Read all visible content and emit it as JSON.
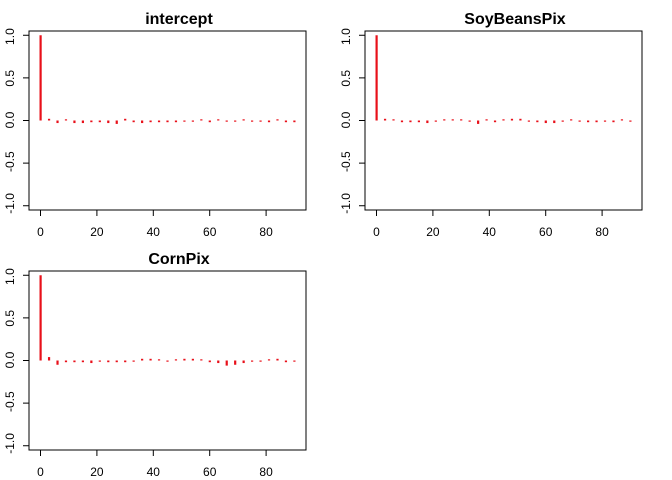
{
  "colors": {
    "bar": "#e8101a",
    "axis": "#000000",
    "background": "#ffffff"
  },
  "chart_data": [
    {
      "type": "bar",
      "title": "intercept",
      "xlim": [
        0,
        90
      ],
      "ylim": [
        -1.05,
        1.05
      ],
      "xticks": [
        0,
        20,
        40,
        60,
        80
      ],
      "xtick_labels": [
        "0",
        "20",
        "40",
        "60",
        "80"
      ],
      "yticks": [
        -1.0,
        -0.5,
        0.0,
        0.5,
        1.0
      ],
      "ytick_labels": [
        "-1.0",
        "-0.5",
        "0.0",
        "0.5",
        "1.0"
      ],
      "lags": [
        0,
        3,
        6,
        9,
        12,
        15,
        18,
        21,
        24,
        27,
        30,
        33,
        36,
        39,
        42,
        45,
        48,
        51,
        54,
        57,
        60,
        63,
        66,
        69,
        72,
        75,
        78,
        81,
        84,
        87,
        90
      ],
      "values": [
        1.0,
        0.02,
        -0.03,
        0.01,
        -0.03,
        -0.03,
        -0.02,
        -0.02,
        -0.03,
        -0.04,
        0.02,
        -0.02,
        -0.03,
        -0.02,
        -0.02,
        -0.02,
        -0.02,
        -0.01,
        -0.01,
        0.0,
        -0.02,
        0.01,
        -0.01,
        -0.01,
        0.0,
        -0.01,
        -0.01,
        -0.02,
        0.01,
        -0.02,
        -0.02
      ]
    },
    {
      "type": "bar",
      "title": "SoyBeansPix",
      "xlim": [
        0,
        90
      ],
      "ylim": [
        -1.05,
        1.05
      ],
      "xticks": [
        0,
        20,
        40,
        60,
        80
      ],
      "xtick_labels": [
        "0",
        "20",
        "40",
        "60",
        "80"
      ],
      "yticks": [
        -1.0,
        -0.5,
        0.0,
        0.5,
        1.0
      ],
      "ytick_labels": [
        "-1.0",
        "-0.5",
        "0.0",
        "0.5",
        "1.0"
      ],
      "lags": [
        0,
        3,
        6,
        9,
        12,
        15,
        18,
        21,
        24,
        27,
        30,
        33,
        36,
        39,
        42,
        45,
        48,
        51,
        54,
        57,
        60,
        63,
        66,
        69,
        72,
        75,
        78,
        81,
        84,
        87,
        90
      ],
      "values": [
        1.0,
        0.02,
        0.01,
        -0.02,
        -0.02,
        -0.02,
        -0.03,
        -0.01,
        0.0,
        0.0,
        0.01,
        -0.01,
        -0.04,
        0.01,
        -0.02,
        0.01,
        0.02,
        0.02,
        -0.01,
        -0.02,
        -0.03,
        -0.03,
        -0.01,
        0.0,
        -0.01,
        -0.02,
        -0.02,
        -0.01,
        -0.02,
        0.01,
        -0.01
      ]
    },
    {
      "type": "bar",
      "title": "CornPix",
      "xlim": [
        0,
        90
      ],
      "ylim": [
        -1.05,
        1.05
      ],
      "xticks": [
        0,
        20,
        40,
        60,
        80
      ],
      "xtick_labels": [
        "0",
        "20",
        "40",
        "60",
        "80"
      ],
      "yticks": [
        -1.0,
        -0.5,
        0.0,
        0.5,
        1.0
      ],
      "ytick_labels": [
        "-1.0",
        "-0.5",
        "0.0",
        "0.5",
        "1.0"
      ],
      "lags": [
        0,
        3,
        6,
        9,
        12,
        15,
        18,
        21,
        24,
        27,
        30,
        33,
        36,
        39,
        42,
        45,
        48,
        51,
        54,
        57,
        60,
        63,
        66,
        69,
        72,
        75,
        78,
        81,
        84,
        87,
        90
      ],
      "values": [
        1.0,
        0.04,
        -0.05,
        -0.02,
        -0.02,
        -0.02,
        -0.03,
        -0.01,
        -0.02,
        -0.02,
        -0.02,
        -0.01,
        0.02,
        0.02,
        0.01,
        -0.01,
        0.01,
        0.02,
        0.02,
        0.0,
        -0.02,
        -0.03,
        -0.06,
        -0.05,
        -0.03,
        -0.01,
        -0.01,
        0.01,
        0.02,
        -0.02,
        -0.01
      ]
    }
  ]
}
